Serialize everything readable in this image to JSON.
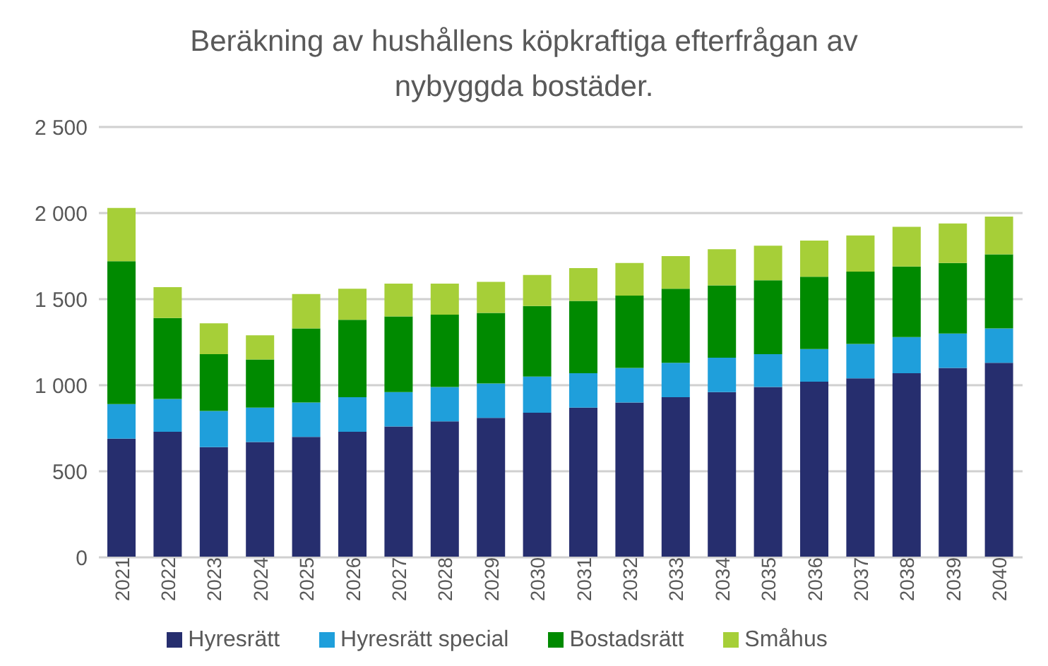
{
  "chart_data": {
    "type": "bar",
    "title": "Beräkning av hushållens köpkraftiga efterfrågan av nybyggda bostäder.",
    "categories": [
      "2021",
      "2022",
      "2023",
      "2024",
      "2025",
      "2026",
      "2027",
      "2028",
      "2029",
      "2030",
      "2031",
      "2032",
      "2033",
      "2034",
      "2035",
      "2036",
      "2037",
      "2038",
      "2039",
      "2040"
    ],
    "stacked": true,
    "grid": "y",
    "legend": "bottom",
    "ylim": [
      0,
      2500
    ],
    "yticks": [
      0,
      {
        "value": 500,
        "label": "500"
      },
      {
        "value": 1000,
        "label": "1 000"
      },
      {
        "value": 1500,
        "label": "1 500"
      },
      {
        "value": 2000,
        "label": "2 000"
      },
      {
        "value": 2500,
        "label": "2 500"
      }
    ],
    "series": [
      {
        "name": "Hyresrätt",
        "color": "#262e6e",
        "values": [
          690,
          730,
          640,
          670,
          700,
          730,
          760,
          790,
          810,
          840,
          870,
          900,
          930,
          960,
          990,
          1020,
          1040,
          1070,
          1100,
          1130
        ]
      },
      {
        "name": "Hyresrätt special",
        "color": "#1f9fdb",
        "values": [
          200,
          190,
          210,
          200,
          200,
          200,
          200,
          200,
          200,
          210,
          200,
          200,
          200,
          200,
          190,
          190,
          200,
          210,
          200,
          200
        ]
      },
      {
        "name": "Bostadsrätt",
        "color": "#008a00",
        "values": [
          830,
          470,
          330,
          280,
          430,
          450,
          440,
          420,
          410,
          410,
          420,
          420,
          430,
          420,
          430,
          420,
          420,
          410,
          410,
          430
        ]
      },
      {
        "name": "Småhus",
        "color": "#a6cf38",
        "values": [
          310,
          180,
          180,
          140,
          200,
          180,
          190,
          180,
          180,
          180,
          190,
          190,
          190,
          210,
          200,
          210,
          210,
          230,
          230,
          220
        ]
      }
    ]
  }
}
